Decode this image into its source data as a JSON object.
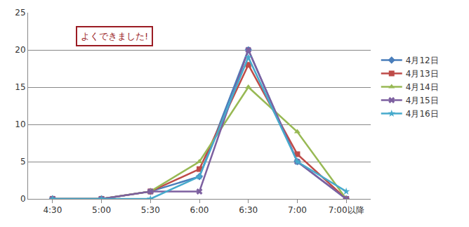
{
  "chart_data": {
    "type": "line",
    "categories": [
      "4:30",
      "5:00",
      "5:30",
      "6:00",
      "6:30",
      "7:00",
      "7:00以降"
    ],
    "series": [
      {
        "name": "4月12日",
        "color": "#4a7ebb",
        "marker": "diamond",
        "values": [
          0,
          0,
          1,
          3,
          20,
          5,
          0
        ]
      },
      {
        "name": "4月13日",
        "color": "#be4b48",
        "marker": "square",
        "values": [
          0,
          0,
          1,
          4,
          18,
          6,
          0
        ]
      },
      {
        "name": "4月14日",
        "color": "#98b954",
        "marker": "triangle",
        "values": [
          0,
          0,
          1,
          5,
          15,
          9,
          0
        ]
      },
      {
        "name": "4月15日",
        "color": "#7d60a0",
        "marker": "x",
        "values": [
          0,
          0,
          1,
          1,
          20,
          5,
          0
        ]
      },
      {
        "name": "4月16日",
        "color": "#46aacc",
        "marker": "star",
        "values": [
          0,
          0,
          0,
          3,
          19,
          5,
          1
        ]
      }
    ],
    "ylim": [
      0,
      25
    ],
    "yticks": [
      0,
      5,
      10,
      15,
      20,
      25
    ],
    "grid": true,
    "legend": "right",
    "annotations": [
      {
        "text": "よくできました!"
      }
    ]
  }
}
